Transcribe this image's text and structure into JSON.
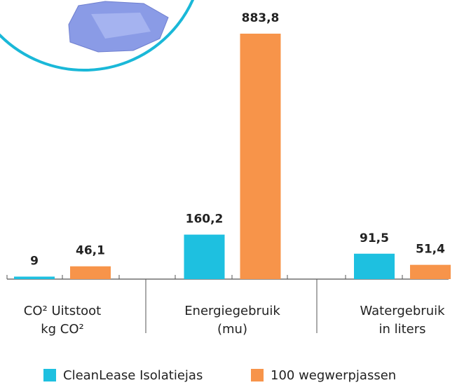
{
  "chart_data": {
    "type": "bar",
    "categories": [
      [
        "CO² Uitstoot",
        "kg CO²"
      ],
      [
        "Energiegebruik",
        "(mu)"
      ],
      [
        "Watergebruik",
        "in liters"
      ]
    ],
    "series": [
      {
        "name": "CleanLease Isolatiejas",
        "color": "#1ec0e0",
        "values": [
          9,
          160.2,
          91.5
        ],
        "value_labels": [
          "9",
          "160,2",
          "91,5"
        ]
      },
      {
        "name": "100 wegwerpjassen",
        "color": "#f7944a",
        "values": [
          46.1,
          883.8,
          51.4
        ],
        "value_labels": [
          "46,1",
          "883,8",
          "51,4"
        ]
      }
    ],
    "legend": "bottom"
  }
}
